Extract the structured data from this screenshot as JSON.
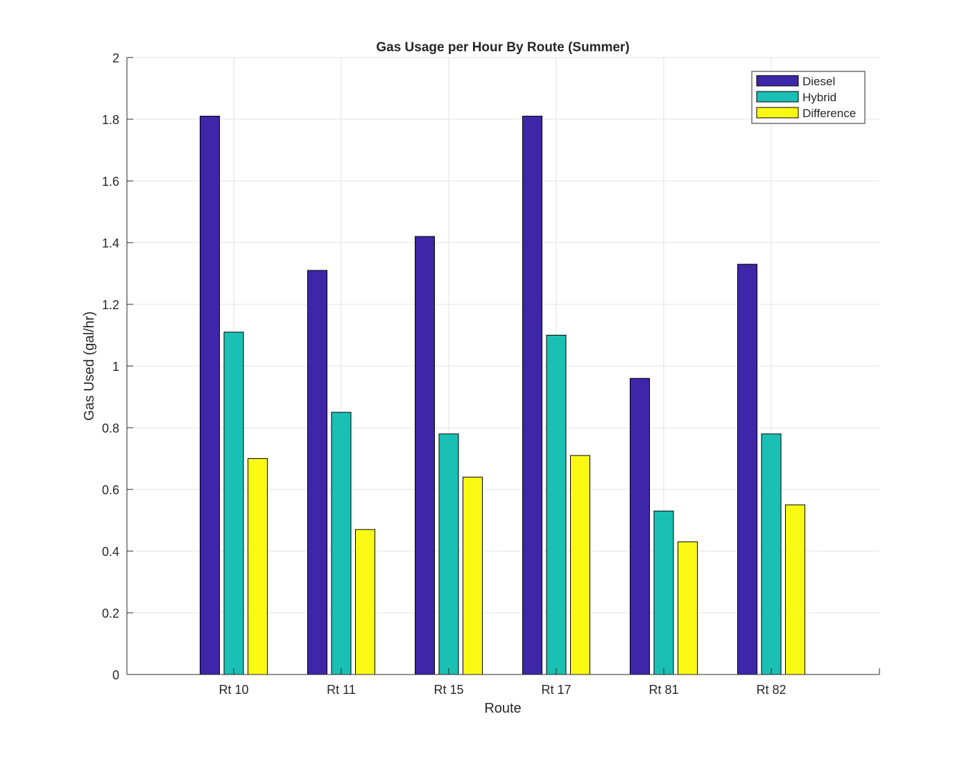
{
  "chart_data": {
    "type": "bar",
    "title": "Gas Usage per Hour By Route (Summer)",
    "xlabel": "Route",
    "ylabel": "Gas Used (gal/hr)",
    "categories": [
      "Rt 10",
      "Rt 11",
      "Rt 15",
      "Rt 17",
      "Rt 81",
      "Rt 82"
    ],
    "series": [
      {
        "name": "Diesel",
        "color": "#3e26a8",
        "values": [
          1.81,
          1.31,
          1.42,
          1.81,
          0.96,
          1.33
        ]
      },
      {
        "name": "Hybrid",
        "color": "#1ac0b4",
        "values": [
          1.11,
          0.85,
          0.78,
          1.1,
          0.53,
          0.78
        ]
      },
      {
        "name": "Difference",
        "color": "#f9f914",
        "values": [
          0.7,
          0.47,
          0.64,
          0.71,
          0.43,
          0.55
        ]
      }
    ],
    "ylim": [
      0,
      2
    ],
    "yticks": [
      "0",
      "0.2",
      "0.4",
      "0.6",
      "0.8",
      "1",
      "1.2",
      "1.4",
      "1.6",
      "1.8",
      "2"
    ],
    "grid": true,
    "legend_position": "top-right"
  }
}
